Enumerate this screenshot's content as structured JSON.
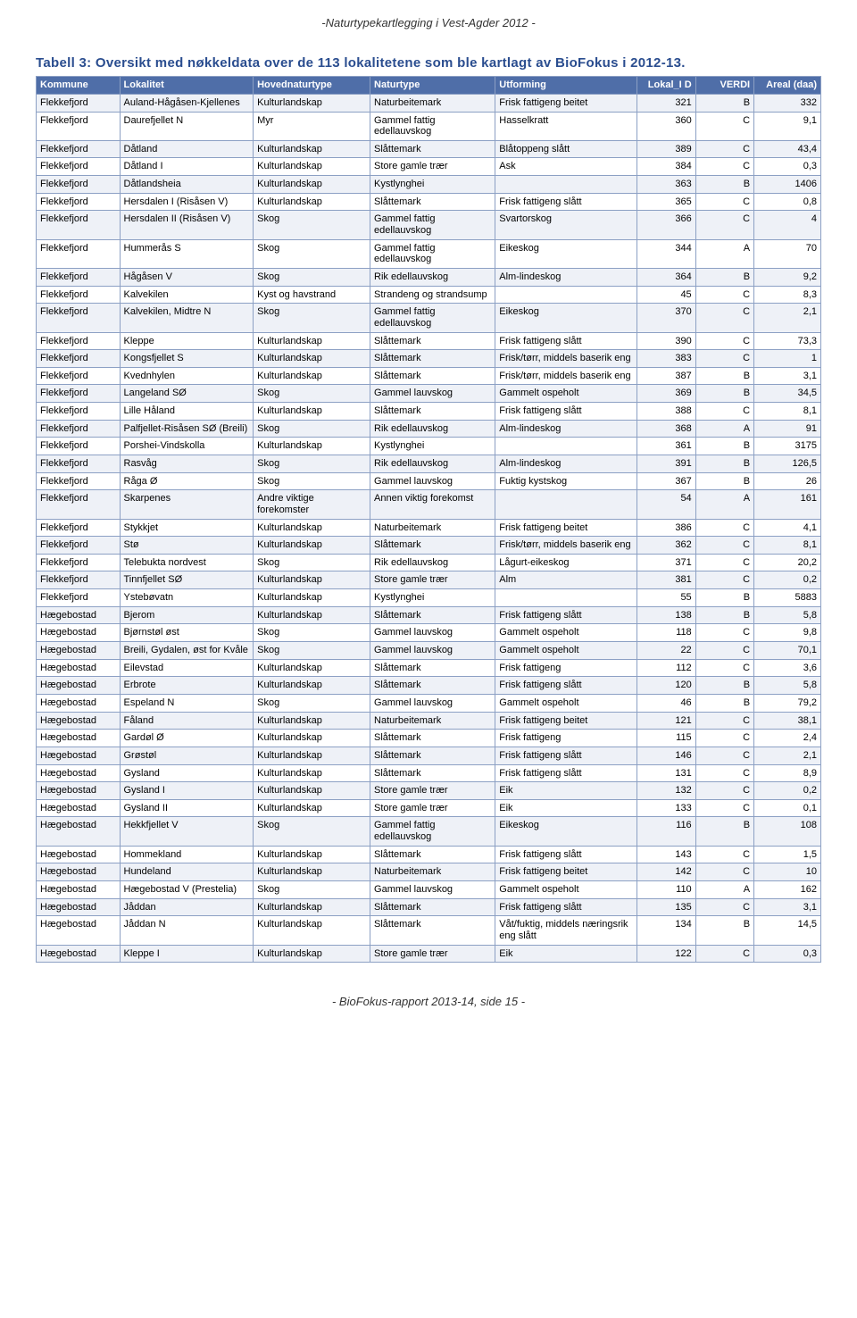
{
  "header": "-Naturtypekartlegging i Vest-Agder 2012 -",
  "title": "Tabell 3: Oversikt med nøkkeldata over de 113 lokalitetene som ble kartlagt av BioFokus i 2012-13.",
  "footer": "- BioFokus-rapport 2013-14, side 15 -",
  "table": {
    "columns": [
      "Kommune",
      "Lokalitet",
      "Hovednaturtype",
      "Naturtype",
      "Utforming",
      "Lokal_I D",
      "VERDI",
      "Areal (daa)"
    ],
    "col_widths_pct": [
      10,
      16,
      14,
      15,
      17,
      7,
      7,
      8
    ],
    "header_bg": "#4f6ea8",
    "header_fg": "#ffffff",
    "row_even_bg": "#eef1f7",
    "row_odd_bg": "#ffffff",
    "border_color": "#8ca0c4",
    "rows": [
      [
        "Flekkefjord",
        "Auland-Hågåsen-Kjellenes",
        "Kulturlandskap",
        "Naturbeitemark",
        "Frisk fattigeng beitet",
        "321",
        "B",
        "332"
      ],
      [
        "Flekkefjord",
        "Daurefjellet N",
        "Myr",
        "Gammel fattig edellauvskog",
        "Hasselkratt",
        "360",
        "C",
        "9,1"
      ],
      [
        "Flekkefjord",
        "Dåtland",
        "Kulturlandskap",
        "Slåttemark",
        "Blåtoppeng slått",
        "389",
        "C",
        "43,4"
      ],
      [
        "Flekkefjord",
        "Dåtland I",
        "Kulturlandskap",
        "Store gamle trær",
        "Ask",
        "384",
        "C",
        "0,3"
      ],
      [
        "Flekkefjord",
        "Dåtlandsheia",
        "Kulturlandskap",
        "Kystlynghei",
        "",
        "363",
        "B",
        "1406"
      ],
      [
        "Flekkefjord",
        "Hersdalen I (Risåsen V)",
        "Kulturlandskap",
        "Slåttemark",
        "Frisk fattigeng slått",
        "365",
        "C",
        "0,8"
      ],
      [
        "Flekkefjord",
        "Hersdalen II (Risåsen V)",
        "Skog",
        "Gammel fattig edellauvskog",
        "Svartorskog",
        "366",
        "C",
        "4"
      ],
      [
        "Flekkefjord",
        "Hummerås S",
        "Skog",
        "Gammel fattig edellauvskog",
        "Eikeskog",
        "344",
        "A",
        "70"
      ],
      [
        "Flekkefjord",
        "Hågåsen V",
        "Skog",
        "Rik edellauvskog",
        "Alm-lindeskog",
        "364",
        "B",
        "9,2"
      ],
      [
        "Flekkefjord",
        "Kalvekilen",
        "Kyst og havstrand",
        "Strandeng og strandsump",
        "",
        "45",
        "C",
        "8,3"
      ],
      [
        "Flekkefjord",
        "Kalvekilen, Midtre N",
        "Skog",
        "Gammel fattig edellauvskog",
        "Eikeskog",
        "370",
        "C",
        "2,1"
      ],
      [
        "Flekkefjord",
        "Kleppe",
        "Kulturlandskap",
        "Slåttemark",
        "Frisk fattigeng slått",
        "390",
        "C",
        "73,3"
      ],
      [
        "Flekkefjord",
        "Kongsfjellet S",
        "Kulturlandskap",
        "Slåttemark",
        "Frisk/tørr, middels baserik eng",
        "383",
        "C",
        "1"
      ],
      [
        "Flekkefjord",
        "Kvednhylen",
        "Kulturlandskap",
        "Slåttemark",
        "Frisk/tørr, middels baserik eng",
        "387",
        "B",
        "3,1"
      ],
      [
        "Flekkefjord",
        "Langeland SØ",
        "Skog",
        "Gammel lauvskog",
        "Gammelt ospeholt",
        "369",
        "B",
        "34,5"
      ],
      [
        "Flekkefjord",
        "Lille Håland",
        "Kulturlandskap",
        "Slåttemark",
        "Frisk fattigeng slått",
        "388",
        "C",
        "8,1"
      ],
      [
        "Flekkefjord",
        "Palfjellet-Risåsen SØ (Breili)",
        "Skog",
        "Rik edellauvskog",
        "Alm-lindeskog",
        "368",
        "A",
        "91"
      ],
      [
        "Flekkefjord",
        "Porshei-Vindskolla",
        "Kulturlandskap",
        "Kystlynghei",
        "",
        "361",
        "B",
        "3175"
      ],
      [
        "Flekkefjord",
        "Rasvåg",
        "Skog",
        "Rik edellauvskog",
        "Alm-lindeskog",
        "391",
        "B",
        "126,5"
      ],
      [
        "Flekkefjord",
        "Råga Ø",
        "Skog",
        "Gammel lauvskog",
        "Fuktig kystskog",
        "367",
        "B",
        "26"
      ],
      [
        "Flekkefjord",
        "Skarpenes",
        "Andre viktige forekomster",
        "Annen viktig forekomst",
        "",
        "54",
        "A",
        "161"
      ],
      [
        "Flekkefjord",
        "Stykkjet",
        "Kulturlandskap",
        "Naturbeitemark",
        "Frisk fattigeng beitet",
        "386",
        "C",
        "4,1"
      ],
      [
        "Flekkefjord",
        "Stø",
        "Kulturlandskap",
        "Slåttemark",
        "Frisk/tørr, middels baserik eng",
        "362",
        "C",
        "8,1"
      ],
      [
        "Flekkefjord",
        "Telebukta nordvest",
        "Skog",
        "Rik edellauvskog",
        "Lågurt-eikeskog",
        "371",
        "C",
        "20,2"
      ],
      [
        "Flekkefjord",
        "Tinnfjellet SØ",
        "Kulturlandskap",
        "Store gamle trær",
        "Alm",
        "381",
        "C",
        "0,2"
      ],
      [
        "Flekkefjord",
        "Ystebøvatn",
        "Kulturlandskap",
        "Kystlynghei",
        "",
        "55",
        "B",
        "5883"
      ],
      [
        "Hægebostad",
        "Bjerom",
        "Kulturlandskap",
        "Slåttemark",
        "Frisk fattigeng slått",
        "138",
        "B",
        "5,8"
      ],
      [
        "Hægebostad",
        "Bjørnstøl øst",
        "Skog",
        "Gammel lauvskog",
        "Gammelt ospeholt",
        "118",
        "C",
        "9,8"
      ],
      [
        "Hægebostad",
        "Breili, Gydalen, øst for Kvåle",
        "Skog",
        "Gammel lauvskog",
        "Gammelt ospeholt",
        "22",
        "C",
        "70,1"
      ],
      [
        "Hægebostad",
        "Eilevstad",
        "Kulturlandskap",
        "Slåttemark",
        "Frisk fattigeng",
        "112",
        "C",
        "3,6"
      ],
      [
        "Hægebostad",
        "Erbrote",
        "Kulturlandskap",
        "Slåttemark",
        "Frisk fattigeng slått",
        "120",
        "B",
        "5,8"
      ],
      [
        "Hægebostad",
        "Espeland N",
        "Skog",
        "Gammel lauvskog",
        "Gammelt ospeholt",
        "46",
        "B",
        "79,2"
      ],
      [
        "Hægebostad",
        "Fåland",
        "Kulturlandskap",
        "Naturbeitemark",
        "Frisk fattigeng beitet",
        "121",
        "C",
        "38,1"
      ],
      [
        "Hægebostad",
        "Gardøl Ø",
        "Kulturlandskap",
        "Slåttemark",
        "Frisk fattigeng",
        "115",
        "C",
        "2,4"
      ],
      [
        "Hægebostad",
        "Grøstøl",
        "Kulturlandskap",
        "Slåttemark",
        "Frisk fattigeng slått",
        "146",
        "C",
        "2,1"
      ],
      [
        "Hægebostad",
        "Gysland",
        "Kulturlandskap",
        "Slåttemark",
        "Frisk fattigeng slått",
        "131",
        "C",
        "8,9"
      ],
      [
        "Hægebostad",
        "Gysland I",
        "Kulturlandskap",
        "Store gamle trær",
        "Eik",
        "132",
        "C",
        "0,2"
      ],
      [
        "Hægebostad",
        "Gysland II",
        "Kulturlandskap",
        "Store gamle trær",
        "Eik",
        "133",
        "C",
        "0,1"
      ],
      [
        "Hægebostad",
        "Hekkfjellet V",
        "Skog",
        "Gammel fattig edellauvskog",
        "Eikeskog",
        "116",
        "B",
        "108"
      ],
      [
        "Hægebostad",
        "Hommekland",
        "Kulturlandskap",
        "Slåttemark",
        "Frisk fattigeng slått",
        "143",
        "C",
        "1,5"
      ],
      [
        "Hægebostad",
        "Hundeland",
        "Kulturlandskap",
        "Naturbeitemark",
        "Frisk fattigeng beitet",
        "142",
        "C",
        "10"
      ],
      [
        "Hægebostad",
        "Hægebostad V (Prestelia)",
        "Skog",
        "Gammel lauvskog",
        "Gammelt ospeholt",
        "110",
        "A",
        "162"
      ],
      [
        "Hægebostad",
        "Jåddan",
        "Kulturlandskap",
        "Slåttemark",
        "Frisk fattigeng slått",
        "135",
        "C",
        "3,1"
      ],
      [
        "Hægebostad",
        "Jåddan N",
        "Kulturlandskap",
        "Slåttemark",
        "Våt/fuktig, middels næringsrik eng slått",
        "134",
        "B",
        "14,5"
      ],
      [
        "Hægebostad",
        "Kleppe I",
        "Kulturlandskap",
        "Store gamle trær",
        "Eik",
        "122",
        "C",
        "0,3"
      ]
    ]
  }
}
